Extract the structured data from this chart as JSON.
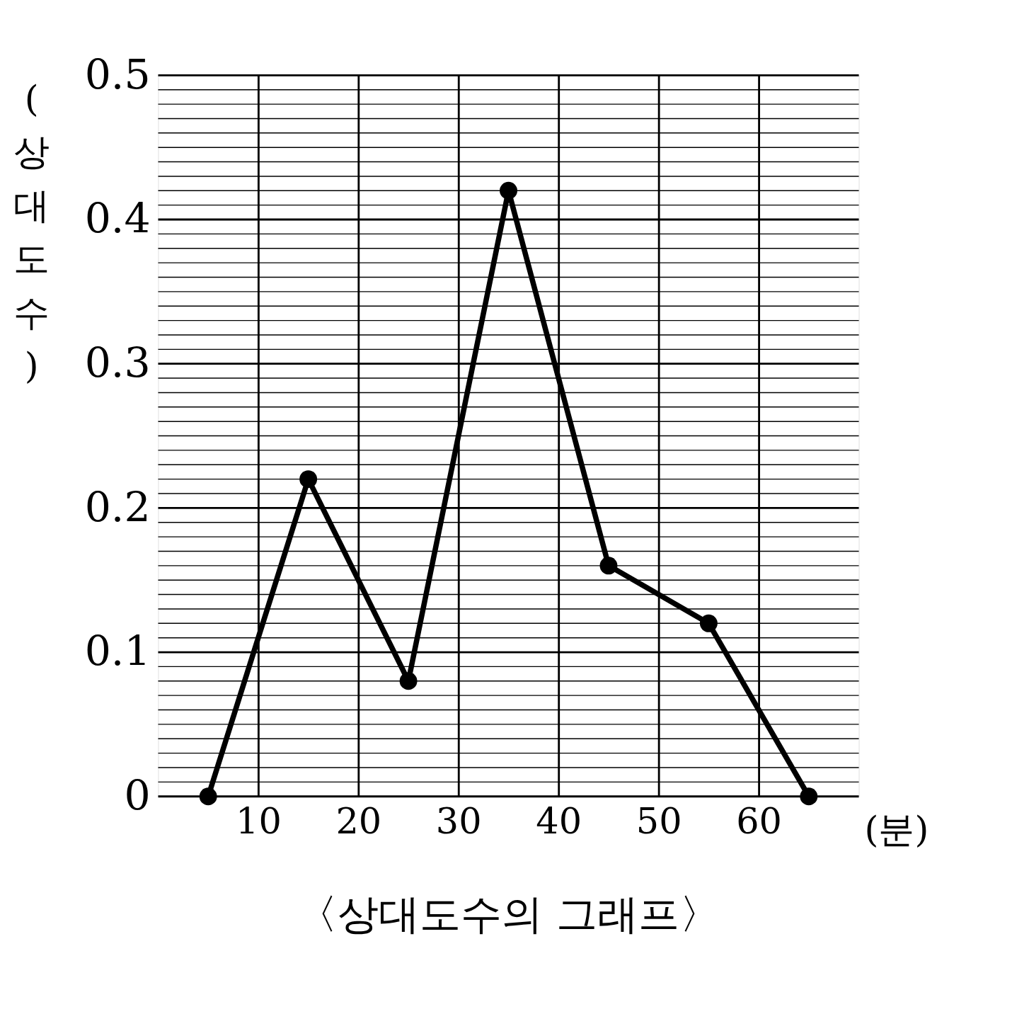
{
  "chart_data": {
    "type": "line",
    "title": "〈상대도수의 그래프〉",
    "xlabel": "(분)",
    "ylabel": "(상대도수)",
    "x": [
      5,
      15,
      25,
      35,
      45,
      55,
      65
    ],
    "series": [
      {
        "color": "#000000",
        "values": [
          0,
          0.22,
          0.08,
          0.42,
          0.16,
          0.12,
          0
        ]
      }
    ],
    "xlim": [
      0,
      70
    ],
    "xticks": [
      10,
      20,
      30,
      40,
      50,
      60
    ],
    "ylim": [
      0,
      0.5
    ],
    "yticks": [
      0,
      {
        "value": 0.01,
        "label": null
      },
      {
        "value": 0.02,
        "label": null
      },
      {
        "value": 0.03,
        "label": null
      },
      {
        "value": 0.04,
        "label": null
      },
      {
        "value": 0.05,
        "label": null
      },
      {
        "value": 0.06,
        "label": null
      },
      {
        "value": 0.07,
        "label": null
      },
      {
        "value": 0.08,
        "label": null
      },
      {
        "value": 0.09,
        "label": null
      },
      0.1,
      {
        "value": 0.11,
        "label": null
      },
      {
        "value": 0.12,
        "label": null
      },
      {
        "value": 0.13,
        "label": null
      },
      {
        "value": 0.14,
        "label": null
      },
      {
        "value": 0.15,
        "label": null
      },
      {
        "value": 0.16,
        "label": null
      },
      {
        "value": 0.17,
        "label": null
      },
      {
        "value": 0.18,
        "label": null
      },
      {
        "value": 0.19,
        "label": null
      },
      0.2,
      {
        "value": 0.21,
        "label": null
      },
      {
        "value": 0.22,
        "label": null
      },
      {
        "value": 0.23,
        "label": null
      },
      {
        "value": 0.24,
        "label": null
      },
      {
        "value": 0.25,
        "label": null
      },
      {
        "value": 0.26,
        "label": null
      },
      {
        "value": 0.27,
        "label": null
      },
      {
        "value": 0.28,
        "label": null
      },
      {
        "value": 0.29,
        "label": null
      },
      0.3,
      {
        "value": 0.31,
        "label": null
      },
      {
        "value": 0.32,
        "label": null
      },
      {
        "value": 0.33,
        "label": null
      },
      {
        "value": 0.34,
        "label": null
      },
      {
        "value": 0.35,
        "label": null
      },
      {
        "value": 0.36,
        "label": null
      },
      {
        "value": 0.37,
        "label": null
      },
      {
        "value": 0.38,
        "label": null
      },
      {
        "value": 0.39,
        "label": null
      },
      0.4,
      {
        "value": 0.41,
        "label": null
      },
      {
        "value": 0.42,
        "label": null
      },
      {
        "value": 0.43,
        "label": null
      },
      {
        "value": 0.44,
        "label": null
      },
      {
        "value": 0.45,
        "label": null
      },
      {
        "value": 0.46,
        "label": null
      },
      {
        "value": 0.47,
        "label": null
      },
      {
        "value": 0.48,
        "label": null
      },
      {
        "value": 0.49,
        "label": null
      },
      0.5
    ],
    "grid": true,
    "marker": "circle",
    "line_style": "solid"
  }
}
